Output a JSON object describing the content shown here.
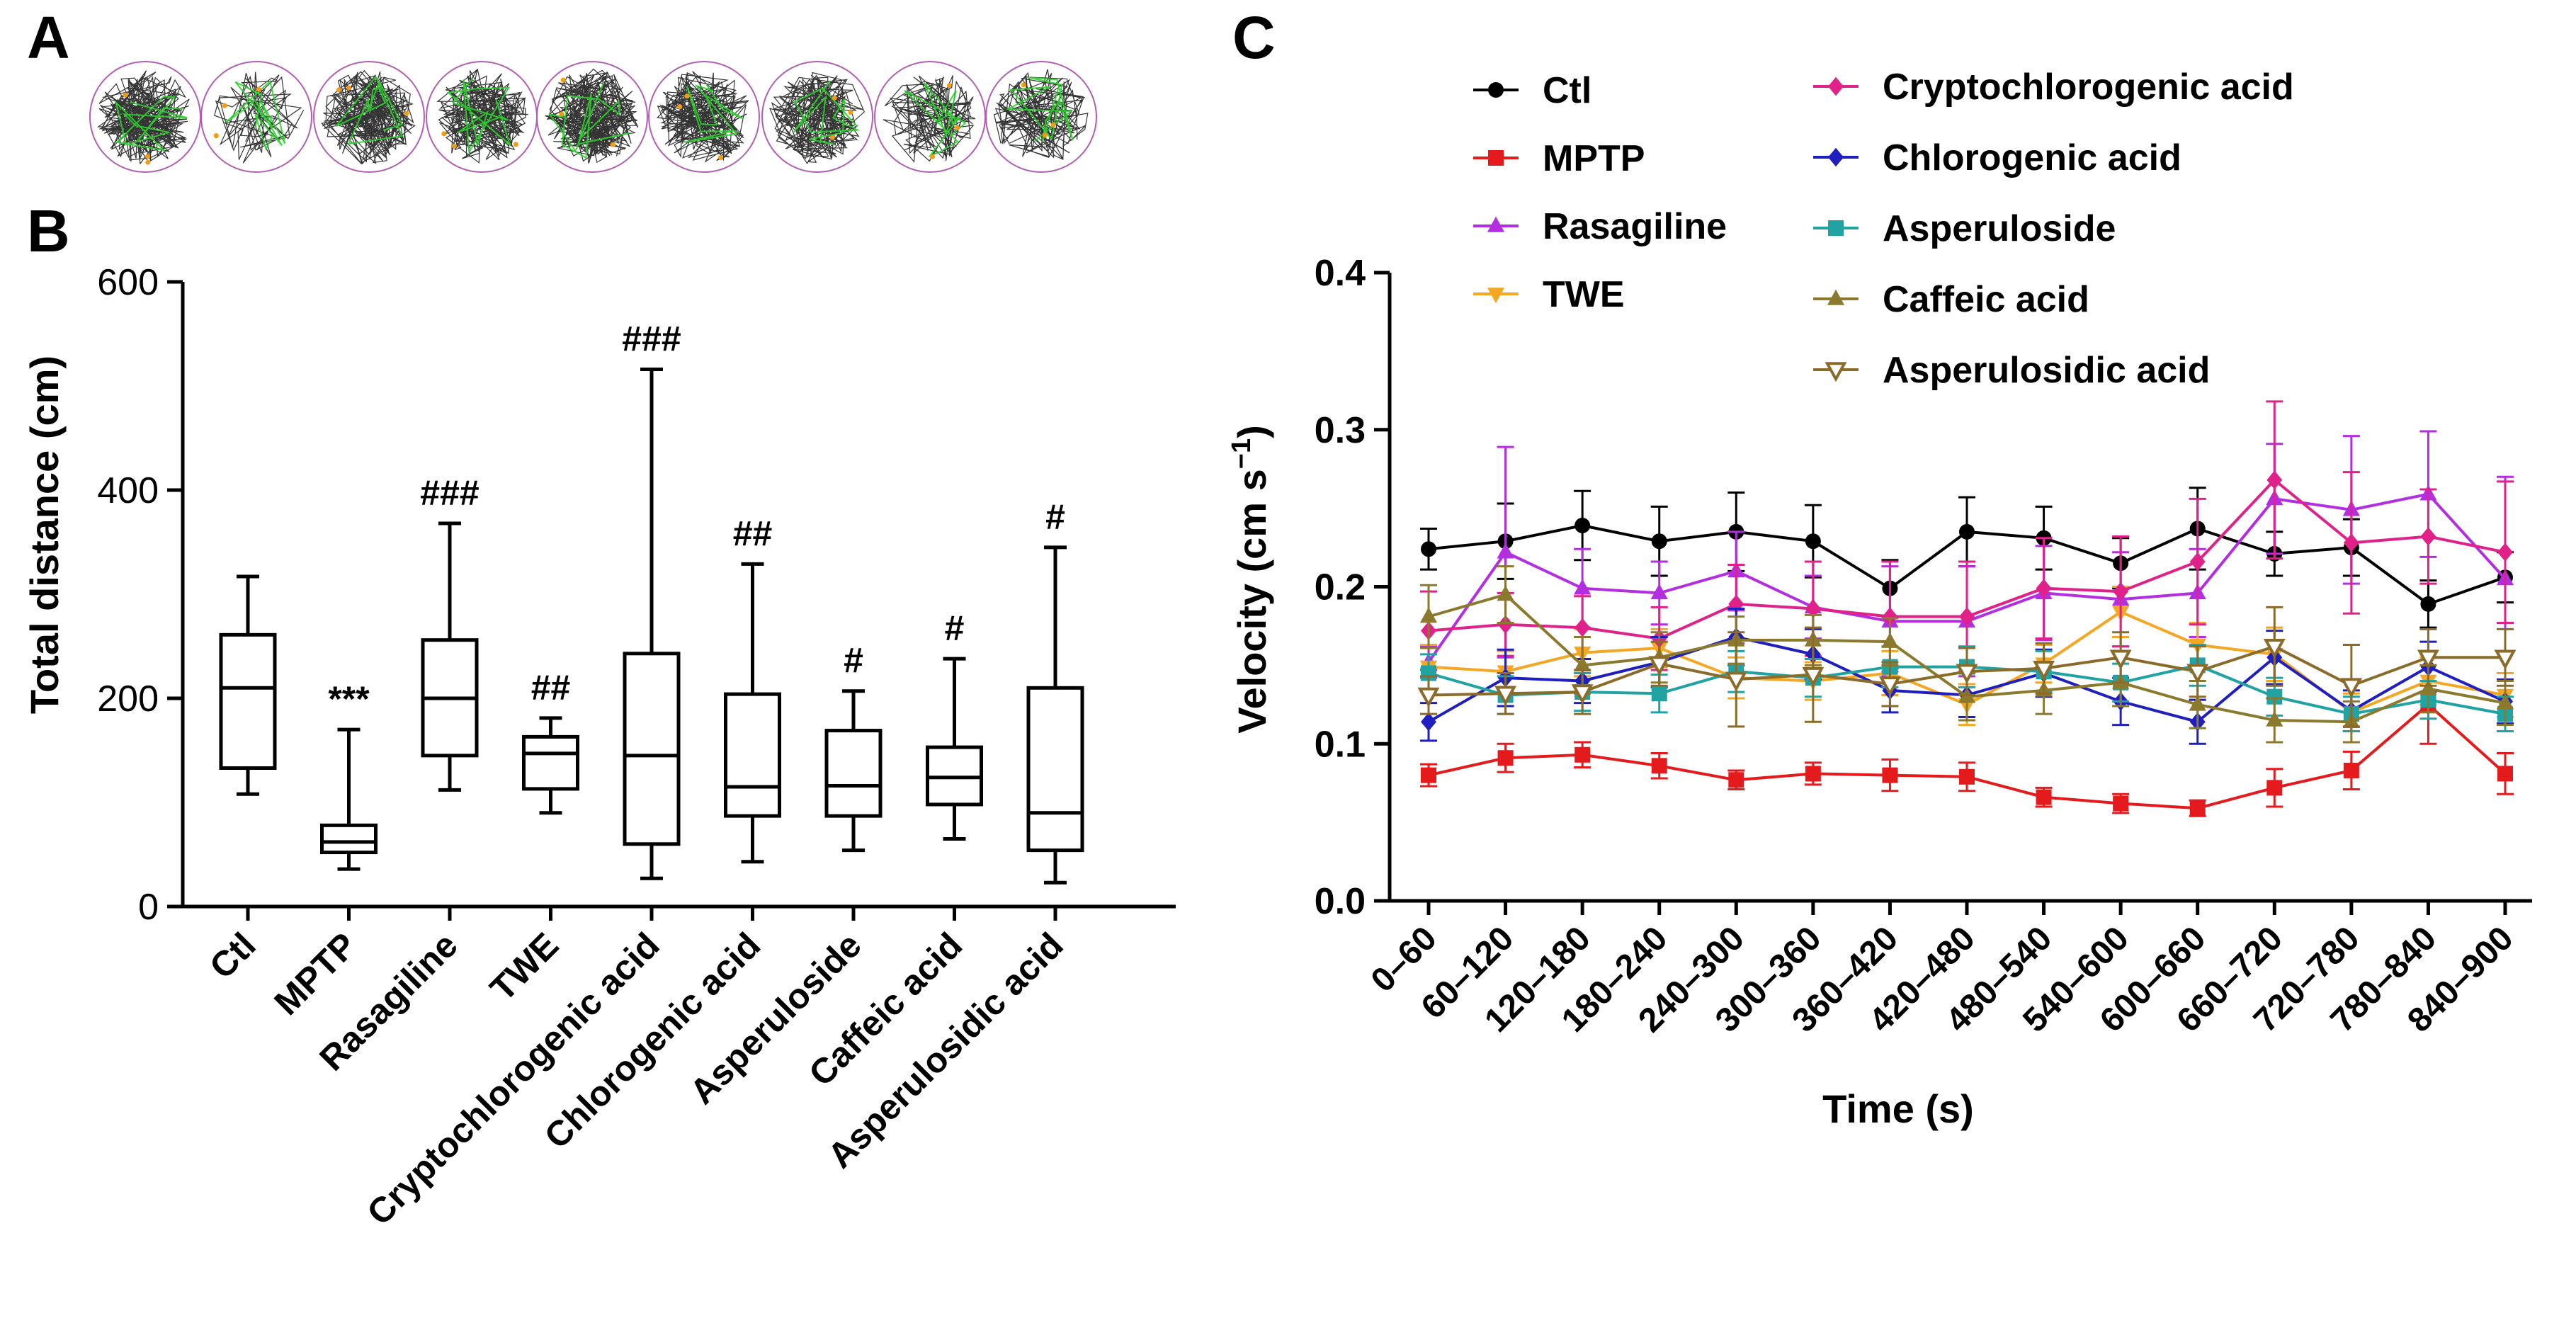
{
  "panel_labels": {
    "a": "A",
    "b": "B",
    "c": "C"
  },
  "chart_data": [
    {
      "type": "box",
      "panel": "B",
      "ylabel": "Total distance (cm)",
      "xlabel": "",
      "ylim": [
        0,
        600
      ],
      "yticks": [
        0,
        200,
        400,
        600
      ],
      "categories": [
        "Ctl",
        "MPTP",
        "Rasagiline",
        "TWE",
        "Cryptochlorogenic acid",
        "Chlorogenic acid",
        "Asperuloside",
        "Caffeic acid",
        "Asperulosidic acid"
      ],
      "boxes": [
        {
          "min": 108,
          "q1": 133,
          "median": 210,
          "q3": 261,
          "max": 317
        },
        {
          "min": 36,
          "q1": 52,
          "median": 62,
          "q3": 78,
          "max": 170
        },
        {
          "min": 112,
          "q1": 145,
          "median": 200,
          "q3": 256,
          "max": 368
        },
        {
          "min": 90,
          "q1": 113,
          "median": 147,
          "q3": 163,
          "max": 181
        },
        {
          "min": 27,
          "q1": 60,
          "median": 145,
          "q3": 243,
          "max": 516
        },
        {
          "min": 43,
          "q1": 87,
          "median": 115,
          "q3": 204,
          "max": 329
        },
        {
          "min": 54,
          "q1": 87,
          "median": 116,
          "q3": 169,
          "max": 207
        },
        {
          "min": 65,
          "q1": 98,
          "median": 124,
          "q3": 153,
          "max": 238
        },
        {
          "min": 23,
          "q1": 54,
          "median": 90,
          "q3": 210,
          "max": 345
        }
      ],
      "annotations": [
        "",
        "***",
        "###",
        "##",
        "###",
        "##",
        "#",
        "#",
        "#"
      ]
    },
    {
      "type": "line",
      "panel": "C",
      "xlabel": "Time (s)",
      "ylabel_main": "Velocity (cm s",
      "ylabel_sup": "−1",
      "ylabel_close": ")",
      "ylim": [
        0,
        0.4
      ],
      "yticks": [
        "0.0",
        "0.1",
        "0.2",
        "0.3",
        "0.4"
      ],
      "categories": [
        "0–60",
        "60–120",
        "120–180",
        "180–240",
        "240–300",
        "300–360",
        "360–420",
        "420–480",
        "480–540",
        "540–600",
        "600–660",
        "660–720",
        "720–780",
        "780–840",
        "840–900"
      ],
      "series": [
        {
          "name": "Ctl",
          "color": "#000000",
          "marker": "circle",
          "values": [
            0.224,
            0.229,
            0.239,
            0.229,
            0.235,
            0.229,
            0.199,
            0.235,
            0.231,
            0.215,
            0.237,
            0.221,
            0.225,
            0.189,
            0.206
          ],
          "errors": [
            0.013,
            0.024,
            0.022,
            0.022,
            0.025,
            0.023,
            0.018,
            0.022,
            0.02,
            0.016,
            0.026,
            0.014,
            0.018,
            0.015,
            0.016
          ]
        },
        {
          "name": "MPTP",
          "color": "#e41a1c",
          "marker": "square",
          "values": [
            0.08,
            0.091,
            0.093,
            0.086,
            0.077,
            0.081,
            0.08,
            0.079,
            0.066,
            0.062,
            0.059,
            0.072,
            0.083,
            0.125,
            0.081
          ],
          "errors": [
            0.007,
            0.009,
            0.008,
            0.008,
            0.006,
            0.007,
            0.01,
            0.009,
            0.006,
            0.006,
            0.005,
            0.012,
            0.012,
            0.025,
            0.013
          ]
        },
        {
          "name": "Rasagiline",
          "color": "#b22ee0",
          "marker": "triangle-up",
          "values": [
            0.152,
            0.222,
            0.199,
            0.196,
            0.21,
            0.187,
            0.178,
            0.178,
            0.196,
            0.192,
            0.196,
            0.256,
            0.249,
            0.259,
            0.205
          ],
          "errors": [
            0.01,
            0.067,
            0.025,
            0.02,
            0.025,
            0.02,
            0.035,
            0.035,
            0.03,
            0.03,
            0.028,
            0.035,
            0.047,
            0.04,
            0.065
          ]
        },
        {
          "name": "TWE",
          "color": "#f5a623",
          "marker": "triangle-down",
          "values": [
            0.149,
            0.146,
            0.158,
            0.161,
            0.142,
            0.14,
            0.145,
            0.125,
            0.151,
            0.184,
            0.163,
            0.157,
            0.12,
            0.14,
            0.131
          ],
          "errors": [
            0.014,
            0.013,
            0.015,
            0.012,
            0.013,
            0.012,
            0.014,
            0.013,
            0.012,
            0.016,
            0.014,
            0.017,
            0.012,
            0.015,
            0.014
          ]
        },
        {
          "name": "Cryptochlorogenic acid",
          "color": "#e0218a",
          "marker": "diamond",
          "values": [
            0.172,
            0.176,
            0.174,
            0.167,
            0.189,
            0.186,
            0.181,
            0.181,
            0.199,
            0.197,
            0.216,
            0.268,
            0.228,
            0.232,
            0.222
          ],
          "errors": [
            0.025,
            0.02,
            0.02,
            0.02,
            0.025,
            0.03,
            0.035,
            0.035,
            0.032,
            0.035,
            0.04,
            0.05,
            0.045,
            0.03,
            0.045
          ]
        },
        {
          "name": "Chlorogenic acid",
          "color": "#1f1fbf",
          "marker": "diamond",
          "values": [
            0.114,
            0.142,
            0.14,
            0.152,
            0.168,
            0.157,
            0.134,
            0.131,
            0.145,
            0.127,
            0.114,
            0.155,
            0.121,
            0.149,
            0.127
          ],
          "errors": [
            0.012,
            0.018,
            0.014,
            0.016,
            0.018,
            0.016,
            0.014,
            0.014,
            0.015,
            0.015,
            0.014,
            0.017,
            0.013,
            0.016,
            0.014
          ]
        },
        {
          "name": "Asperuloside",
          "color": "#21a3a3",
          "marker": "square",
          "values": [
            0.145,
            0.131,
            0.133,
            0.132,
            0.146,
            0.142,
            0.149,
            0.149,
            0.146,
            0.139,
            0.15,
            0.13,
            0.119,
            0.128,
            0.119
          ],
          "errors": [
            0.012,
            0.012,
            0.012,
            0.012,
            0.013,
            0.012,
            0.013,
            0.013,
            0.013,
            0.012,
            0.013,
            0.012,
            0.011,
            0.012,
            0.011
          ]
        },
        {
          "name": "Caffeic acid",
          "color": "#8b7a2e",
          "marker": "triangle-up",
          "values": [
            0.181,
            0.195,
            0.15,
            0.155,
            0.166,
            0.166,
            0.165,
            0.13,
            0.134,
            0.139,
            0.125,
            0.115,
            0.114,
            0.135,
            0.126
          ],
          "errors": [
            0.02,
            0.018,
            0.018,
            0.016,
            0.015,
            0.016,
            0.015,
            0.015,
            0.015,
            0.015,
            0.015,
            0.014,
            0.013,
            0.015,
            0.014
          ]
        },
        {
          "name": "Asperulosidic acid",
          "color": "#8b6b2a",
          "marker": "triangle-down-open",
          "values": [
            0.131,
            0.132,
            0.133,
            0.151,
            0.141,
            0.144,
            0.138,
            0.146,
            0.148,
            0.155,
            0.146,
            0.162,
            0.137,
            0.155,
            0.155
          ],
          "errors": [
            0.012,
            0.013,
            0.014,
            0.014,
            0.03,
            0.03,
            0.014,
            0.015,
            0.016,
            0.016,
            0.016,
            0.025,
            0.026,
            0.018,
            0.018
          ]
        }
      ]
    }
  ]
}
